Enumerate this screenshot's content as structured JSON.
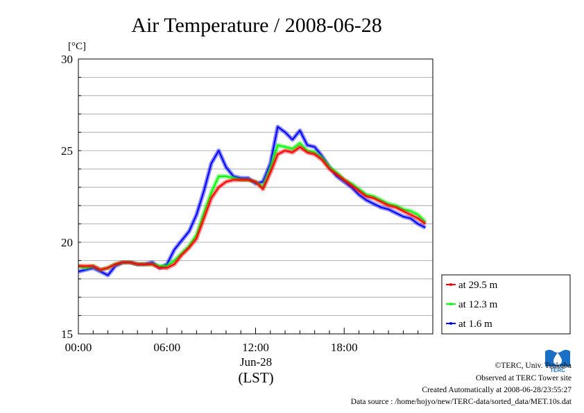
{
  "chart_data": {
    "type": "line",
    "title": "Air Temperature / 2008-06-28",
    "ylabel": "[°C]",
    "xlabel": "(LST)",
    "date_label": "Jun-28",
    "x_tick_labels": [
      "00:00",
      "06:00",
      "12:00",
      "18:00"
    ],
    "x_ticks": [
      0,
      6,
      12,
      18
    ],
    "y_ticks": [
      15,
      20,
      25,
      30
    ],
    "xlim": [
      0,
      24
    ],
    "ylim": [
      15,
      30
    ],
    "y_minor_step": 1,
    "grid": true,
    "legend_position": "right, outside bottom",
    "series": [
      {
        "name": "at 29.5 m",
        "color": "#ff0000",
        "x": [
          0,
          0.5,
          1,
          1.5,
          2,
          2.5,
          3,
          3.5,
          4,
          4.5,
          5,
          5.5,
          6,
          6.5,
          7,
          7.5,
          8,
          8.5,
          9,
          9.5,
          10,
          10.5,
          11,
          11.5,
          12,
          12.5,
          13,
          13.5,
          14,
          14.5,
          15,
          15.5,
          16,
          16.5,
          17,
          17.5,
          18,
          18.5,
          19,
          19.5,
          20,
          20.5,
          21,
          21.5,
          22,
          22.5,
          23,
          23.5
        ],
        "y": [
          18.7,
          18.7,
          18.7,
          18.5,
          18.6,
          18.8,
          18.9,
          18.9,
          18.8,
          18.8,
          18.8,
          18.6,
          18.6,
          18.8,
          19.3,
          19.7,
          20.2,
          21.3,
          22.4,
          23.0,
          23.3,
          23.4,
          23.4,
          23.4,
          23.3,
          22.9,
          23.8,
          24.8,
          25.0,
          24.9,
          25.2,
          24.9,
          24.8,
          24.5,
          24.0,
          23.7,
          23.4,
          23.1,
          22.8,
          22.5,
          22.4,
          22.2,
          22.0,
          21.9,
          21.7,
          21.5,
          21.3,
          21.0
        ]
      },
      {
        "name": "at 12.3 m",
        "color": "#00ff00",
        "x": [
          0,
          0.5,
          1,
          1.5,
          2,
          2.5,
          3,
          3.5,
          4,
          4.5,
          5,
          5.5,
          6,
          6.5,
          7,
          7.5,
          8,
          8.5,
          9,
          9.5,
          10,
          10.5,
          11,
          11.5,
          12,
          12.5,
          13,
          13.5,
          14,
          14.5,
          15,
          15.5,
          16,
          16.5,
          17,
          17.5,
          18,
          18.5,
          19,
          19.5,
          20,
          20.5,
          21,
          21.5,
          22,
          22.5,
          23,
          23.5
        ],
        "y": [
          18.7,
          18.6,
          18.7,
          18.5,
          18.6,
          18.8,
          18.9,
          18.9,
          18.8,
          18.8,
          18.8,
          18.7,
          18.7,
          19.0,
          19.4,
          19.8,
          20.4,
          21.6,
          22.7,
          23.6,
          23.6,
          23.5,
          23.4,
          23.4,
          23.3,
          23.0,
          24.0,
          25.3,
          25.2,
          25.1,
          25.4,
          25.0,
          24.9,
          24.6,
          24.1,
          23.8,
          23.4,
          23.2,
          22.9,
          22.6,
          22.5,
          22.3,
          22.1,
          22.0,
          21.8,
          21.7,
          21.5,
          21.1
        ]
      },
      {
        "name": "at 1.6 m",
        "color": "#0000ff",
        "x": [
          0,
          0.5,
          1,
          1.5,
          2,
          2.5,
          3,
          3.5,
          4,
          4.5,
          5,
          5.5,
          6,
          6.5,
          7,
          7.5,
          8,
          8.5,
          9,
          9.5,
          10,
          10.5,
          11,
          11.5,
          12,
          12.5,
          13,
          13.5,
          14,
          14.5,
          15,
          15.5,
          16,
          16.5,
          17,
          17.5,
          18,
          18.5,
          19,
          19.5,
          20,
          20.5,
          21,
          21.5,
          22,
          22.5,
          23,
          23.5
        ],
        "y": [
          18.4,
          18.5,
          18.6,
          18.4,
          18.2,
          18.7,
          18.9,
          18.9,
          18.8,
          18.8,
          18.9,
          18.6,
          18.8,
          19.6,
          20.1,
          20.6,
          21.5,
          22.8,
          24.3,
          25.0,
          24.1,
          23.6,
          23.5,
          23.5,
          23.2,
          23.3,
          24.3,
          26.3,
          26.0,
          25.6,
          26.1,
          25.3,
          25.2,
          24.7,
          24.1,
          23.6,
          23.3,
          23.0,
          22.6,
          22.3,
          22.1,
          21.9,
          21.8,
          21.6,
          21.4,
          21.3,
          21.0,
          20.8
        ]
      }
    ]
  },
  "footer": {
    "copyright": "©TERC, Univ. Tsukuba",
    "site": "Observed at TERC Tower site",
    "created": "Created Automatically at 2008-06-28/23:55:27",
    "source": "Data source : /home/hojyo/new/TERC-data/sorted_data/MET.10s.dat"
  },
  "logo": {
    "label": "TERC",
    "color": "#1a6fc4"
  }
}
